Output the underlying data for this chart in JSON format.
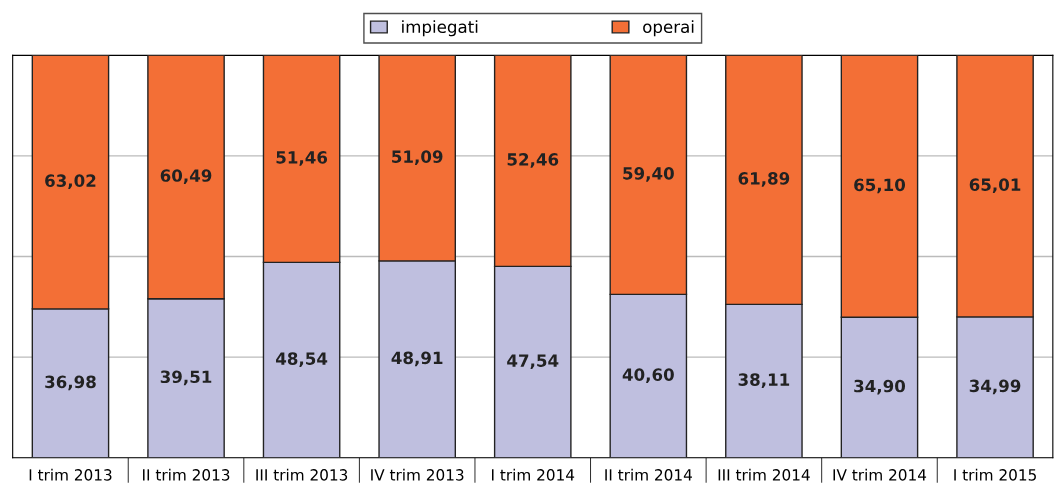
{
  "chart_data": {
    "type": "bar",
    "stacked": true,
    "categories": [
      "I trim 2013",
      "II trim 2013",
      "III trim 2013",
      "IV trim 2013",
      "I trim 2014",
      "II trim 2014",
      "III trim 2014",
      "IV trim 2014",
      "I trim 2015"
    ],
    "series": [
      {
        "name": "impiegati",
        "color": "#bfbfdf",
        "values": [
          36.98,
          39.51,
          48.54,
          48.91,
          47.54,
          40.6,
          38.11,
          34.9,
          34.99
        ],
        "value_labels": [
          "36,98",
          "39,51",
          "48,54",
          "48,91",
          "47,54",
          "40,60",
          "38,11",
          "34,90",
          "34,99"
        ]
      },
      {
        "name": "operai",
        "color": "#f36f36",
        "values": [
          63.02,
          60.49,
          51.46,
          51.09,
          52.46,
          59.4,
          61.89,
          65.1,
          65.01
        ],
        "value_labels": [
          "63,02",
          "60,49",
          "51,46",
          "51,09",
          "52,46",
          "59,40",
          "61,89",
          "65,10",
          "65,01"
        ]
      }
    ],
    "ylim": [
      0,
      100
    ],
    "yticks": [
      {
        "value": 0,
        "label": null
      },
      {
        "value": 25,
        "label": null
      },
      {
        "value": 50,
        "label": null
      },
      {
        "value": 75,
        "label": null
      },
      {
        "value": 100,
        "label": null
      }
    ],
    "grid": "y",
    "legend": "top",
    "tick_labels": "x"
  }
}
